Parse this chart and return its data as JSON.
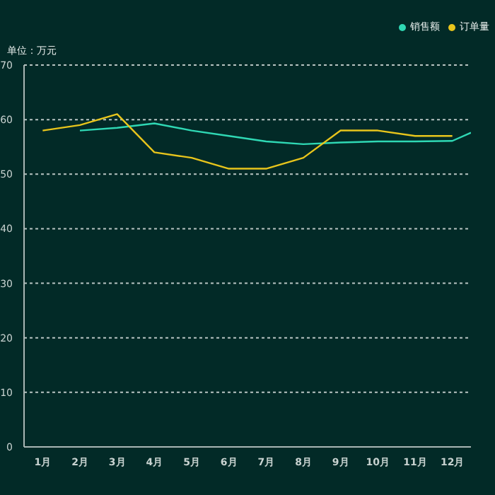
{
  "chart_data": {
    "type": "line",
    "ylabel": "单位：万元",
    "xlim": [
      0.5,
      12.5
    ],
    "xticks": [
      {
        "value": 1,
        "label": "1月"
      },
      {
        "value": 2,
        "label": "2月"
      },
      {
        "value": 3,
        "label": "3月"
      },
      {
        "value": 4,
        "label": "4月"
      },
      {
        "value": 5,
        "label": "5月"
      },
      {
        "value": 6,
        "label": "6月"
      },
      {
        "value": 7,
        "label": "7月"
      },
      {
        "value": 8,
        "label": "8月"
      },
      {
        "value": 9,
        "label": "9月"
      },
      {
        "value": 10,
        "label": "10月"
      },
      {
        "value": 11,
        "label": "11月"
      },
      {
        "value": 12,
        "label": "12月"
      }
    ],
    "ylim": [
      0,
      70
    ],
    "yticks": [
      0,
      10,
      20,
      30,
      40,
      50,
      60,
      70
    ],
    "grid": "y",
    "legend": "top right",
    "marker": "none",
    "line_style": "solid",
    "series": [
      {
        "name": "销售额",
        "color": "#2fd8b4",
        "x": [
          2,
          3,
          4,
          5,
          6,
          7,
          8,
          9,
          10,
          11,
          12,
          12.5
        ],
        "values": [
          58,
          58.5,
          59.3,
          58,
          57,
          56,
          55.5,
          55.8,
          56,
          56,
          56.1,
          57.6
        ]
      },
      {
        "name": "订单量",
        "color": "#e8c51c",
        "x": [
          1,
          2,
          3,
          4,
          5,
          6,
          7,
          8,
          9,
          10,
          11,
          12
        ],
        "values": [
          58,
          59,
          61,
          54,
          53,
          51,
          51,
          53,
          58,
          58,
          57,
          57
        ]
      }
    ]
  }
}
